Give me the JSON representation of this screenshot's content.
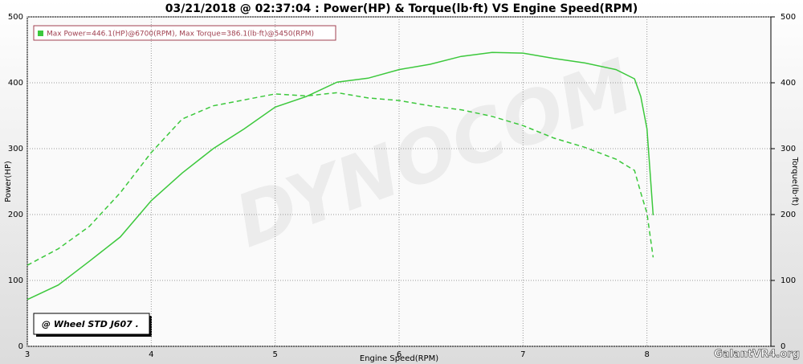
{
  "chart_data": {
    "type": "line",
    "title": "03/21/2018 @ 02:37:04 : Power(HP) & Torque(lb·ft) VS Engine Speed(RPM)",
    "legend_text": "Max Power=446.1(HP)@6700(RPM), Max Torque=386.1(lb·ft)@5450(RPM)",
    "annotation": "@ Wheel STD J607  .",
    "watermark": "GalantVR4.org",
    "background_text": "DYNOCOM",
    "x_label": "Engine Speed(RPM)",
    "y_label": "Power(HP)",
    "y2_label": "Torque(lb·ft)",
    "x": [
      3,
      3.25,
      3.5,
      3.75,
      4,
      4.25,
      4.5,
      4.75,
      5,
      5.25,
      5.5,
      5.75,
      6,
      6.25,
      6.5,
      6.75,
      7,
      7.25,
      7.5,
      7.75,
      7.9,
      7.95,
      8,
      8.05
    ],
    "series": [
      {
        "color": "#3cc83c",
        "style": "solid",
        "values": [
          71,
          93,
          129,
          166,
          221,
          263,
          300,
          330,
          363,
          379,
          401,
          407,
          420,
          428,
          440,
          446,
          445,
          437,
          430,
          420,
          406,
          379,
          330,
          199
        ]
      },
      {
        "color": "#3cc83c",
        "style": "dashed",
        "axis": "y2",
        "values": [
          123,
          148,
          182,
          233,
          294,
          345,
          365,
          374,
          383,
          380,
          385,
          377,
          373,
          365,
          359,
          349,
          335,
          316,
          302,
          284,
          267,
          233,
          202,
          135
        ]
      }
    ],
    "xlim": [
      3,
      9
    ],
    "xticks": [
      3,
      4,
      5,
      6,
      7,
      8
    ],
    "ylim": [
      0,
      500
    ],
    "yticks": [
      0,
      100,
      200,
      300,
      400,
      500
    ],
    "y2lim": [
      0,
      500
    ],
    "y2ticks": [
      0,
      100,
      200,
      300,
      400,
      500
    ],
    "grid": true
  }
}
